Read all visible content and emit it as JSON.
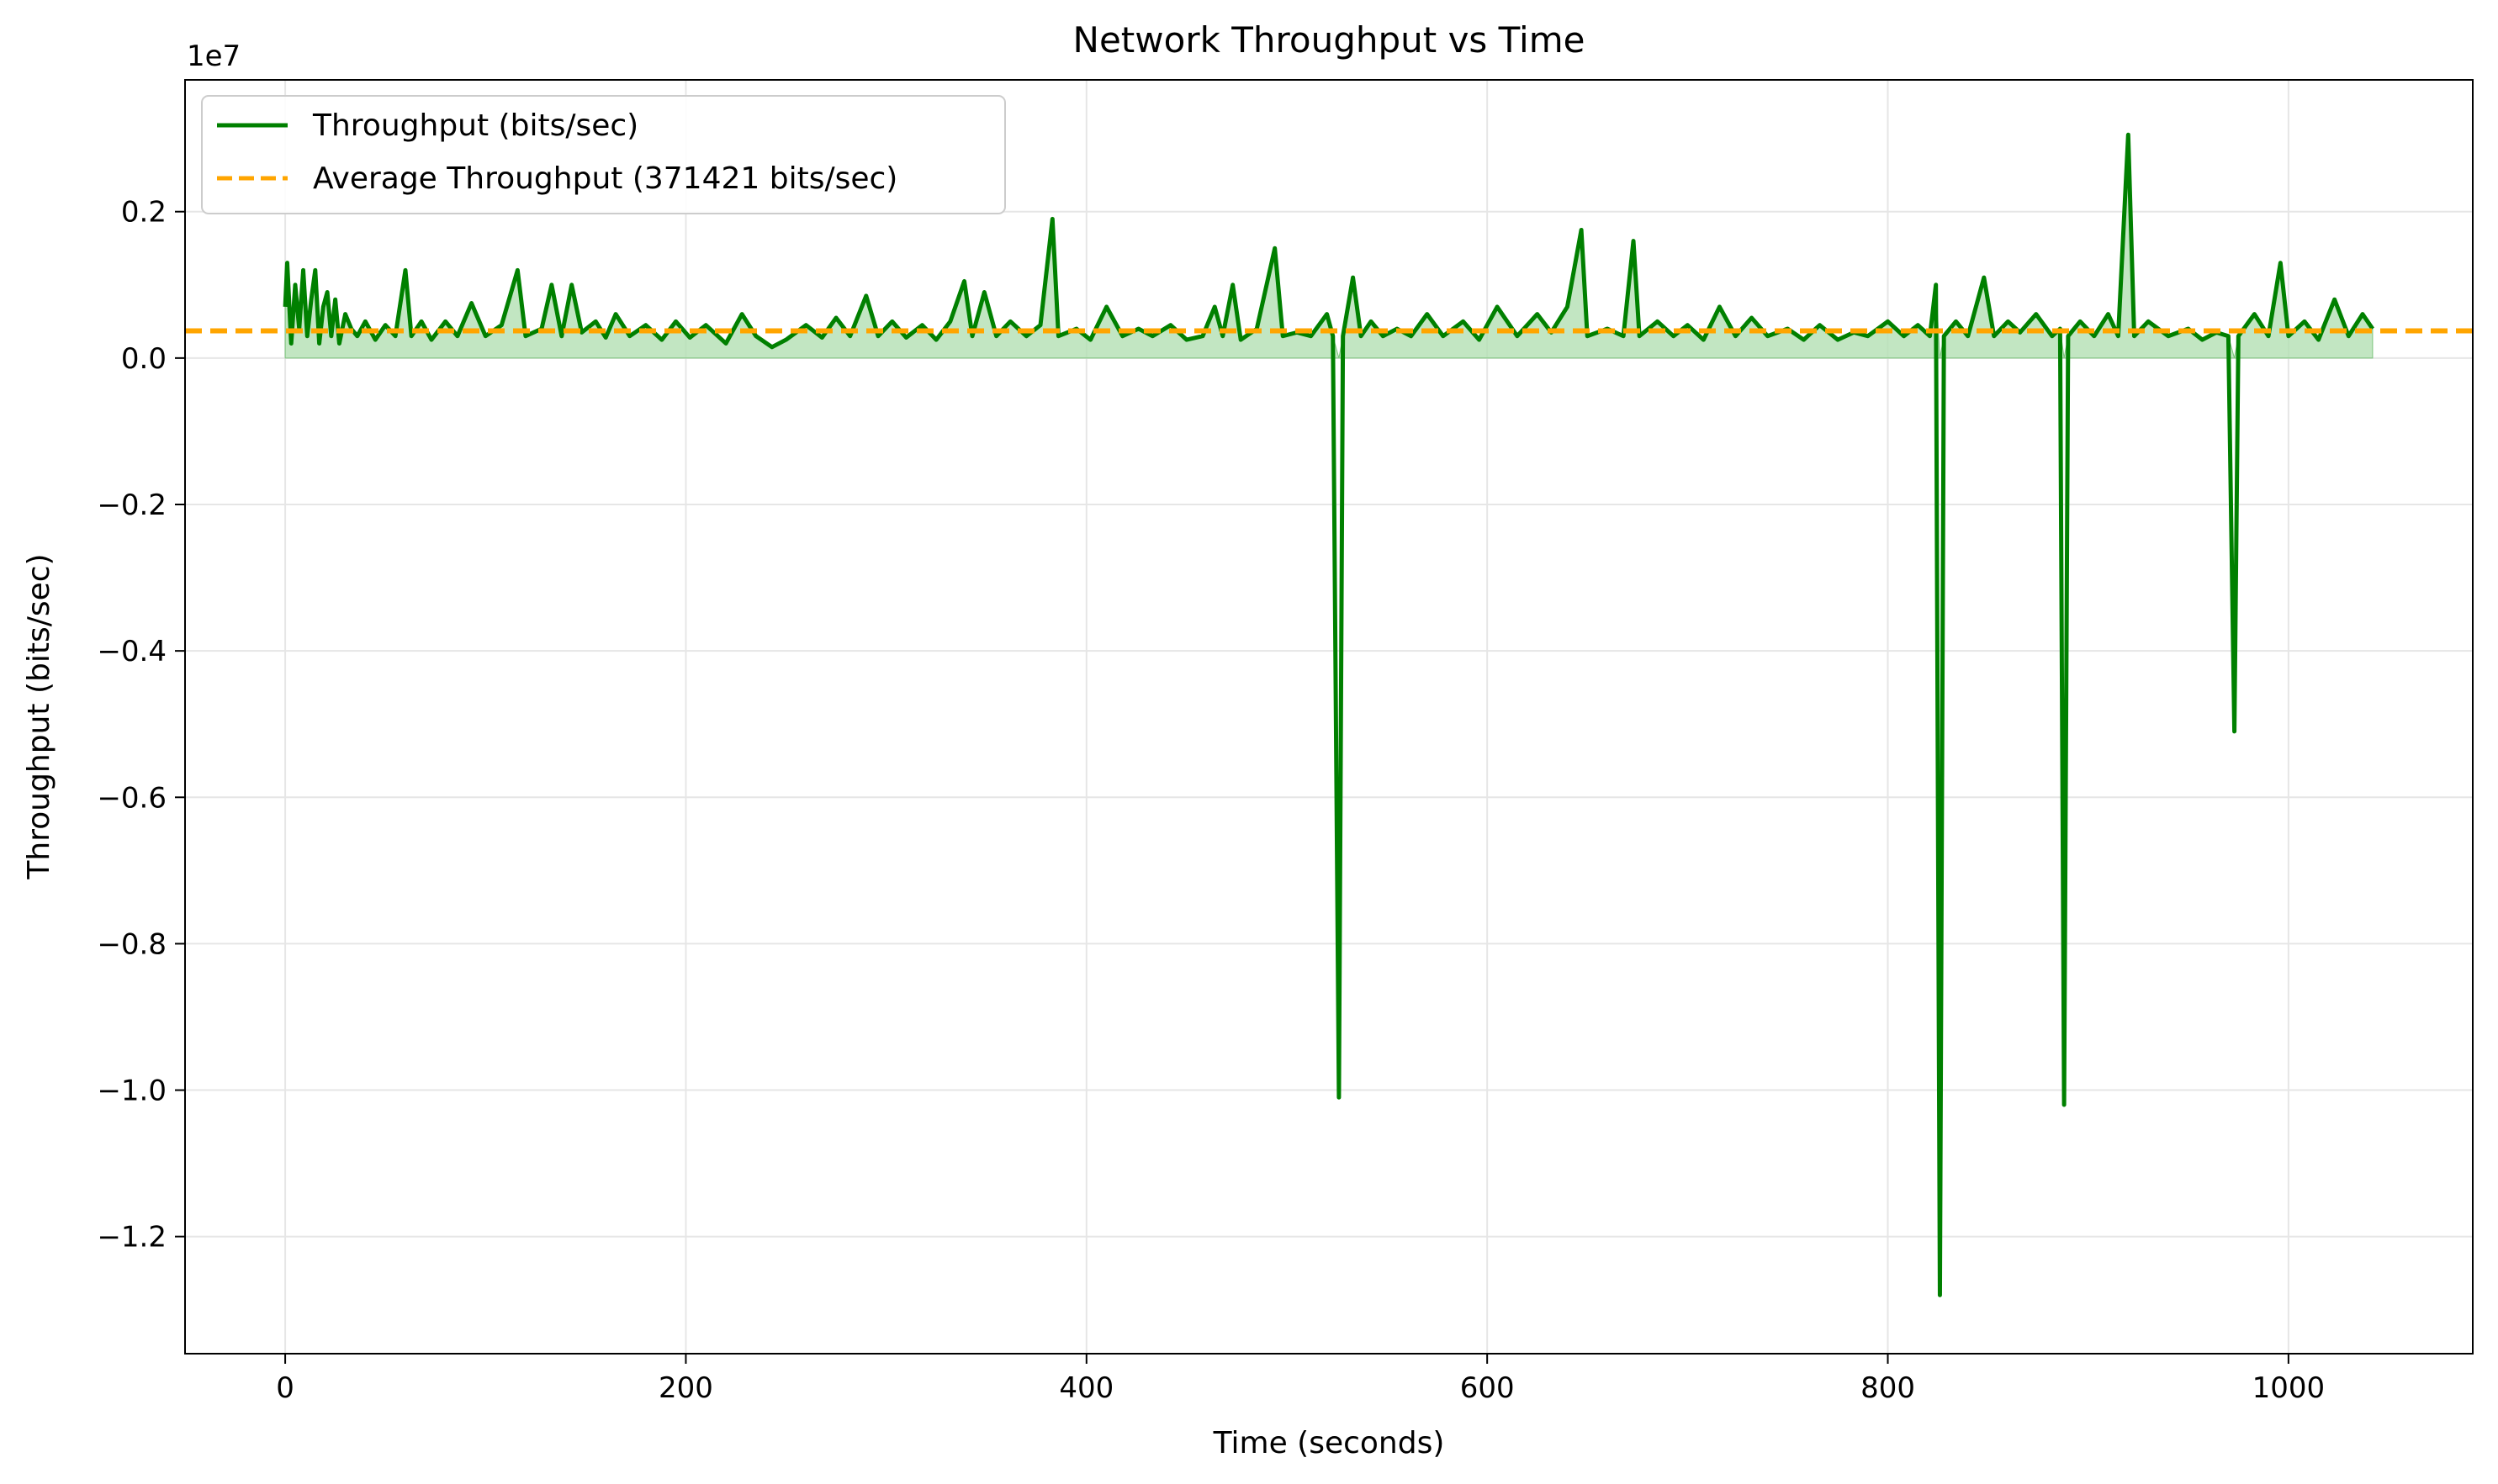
{
  "chart_data": {
    "type": "line",
    "title": "Network Throughput vs Time",
    "xlabel": "Time (seconds)",
    "ylabel": "Throughput (bits/sec)",
    "y_offset_text": "1e7",
    "y_scale_factor": 10000000,
    "xlim": [
      -50,
      1092
    ],
    "ylim": [
      -13.6,
      3.8
    ],
    "xticks": [
      0,
      200,
      400,
      600,
      800,
      1000
    ],
    "xtick_labels": [
      "0",
      "200",
      "400",
      "600",
      "800",
      "1000"
    ],
    "yticks": [
      -1.2,
      -1.0,
      -0.8,
      -0.6,
      -0.4,
      -0.2,
      0.0,
      0.2
    ],
    "ytick_labels": [
      "−1.2",
      "−1.0",
      "−0.8",
      "−0.6",
      "−0.4",
      "−0.2",
      "0.0",
      "0.2"
    ],
    "grid": true,
    "legend_position": "top-left",
    "series": [
      {
        "name": "Throughput (bits/sec)",
        "color": "#008000",
        "style": "solid",
        "fill_to_zero": true,
        "fill_color": "#b3e0b3",
        "points": [
          [
            0,
            700000
          ],
          [
            1,
            1300000
          ],
          [
            3,
            200000
          ],
          [
            5,
            1000000
          ],
          [
            7,
            400000
          ],
          [
            9,
            1200000
          ],
          [
            11,
            300000
          ],
          [
            13,
            800000
          ],
          [
            15,
            1200000
          ],
          [
            17,
            200000
          ],
          [
            19,
            700000
          ],
          [
            21,
            900000
          ],
          [
            23,
            300000
          ],
          [
            25,
            800000
          ],
          [
            27,
            200000
          ],
          [
            30,
            600000
          ],
          [
            33,
            400000
          ],
          [
            36,
            300000
          ],
          [
            40,
            500000
          ],
          [
            45,
            250000
          ],
          [
            50,
            450000
          ],
          [
            55,
            300000
          ],
          [
            60,
            1200000
          ],
          [
            63,
            300000
          ],
          [
            68,
            500000
          ],
          [
            73,
            250000
          ],
          [
            80,
            500000
          ],
          [
            86,
            300000
          ],
          [
            93,
            750000
          ],
          [
            100,
            300000
          ],
          [
            108,
            450000
          ],
          [
            116,
            1200000
          ],
          [
            120,
            300000
          ],
          [
            128,
            400000
          ],
          [
            133,
            1000000
          ],
          [
            138,
            300000
          ],
          [
            143,
            1000000
          ],
          [
            148,
            350000
          ],
          [
            155,
            500000
          ],
          [
            160,
            280000
          ],
          [
            165,
            600000
          ],
          [
            172,
            300000
          ],
          [
            180,
            450000
          ],
          [
            188,
            250000
          ],
          [
            195,
            500000
          ],
          [
            202,
            280000
          ],
          [
            210,
            450000
          ],
          [
            220,
            200000
          ],
          [
            228,
            600000
          ],
          [
            235,
            300000
          ],
          [
            243,
            150000
          ],
          [
            250,
            250000
          ],
          [
            260,
            450000
          ],
          [
            268,
            280000
          ],
          [
            275,
            550000
          ],
          [
            282,
            300000
          ],
          [
            290,
            850000
          ],
          [
            296,
            300000
          ],
          [
            303,
            500000
          ],
          [
            310,
            280000
          ],
          [
            318,
            450000
          ],
          [
            325,
            250000
          ],
          [
            332,
            500000
          ],
          [
            339,
            1050000
          ],
          [
            343,
            300000
          ],
          [
            349,
            900000
          ],
          [
            355,
            300000
          ],
          [
            362,
            500000
          ],
          [
            370,
            300000
          ],
          [
            377,
            450000
          ],
          [
            383,
            1900000
          ],
          [
            386,
            300000
          ],
          [
            395,
            400000
          ],
          [
            402,
            250000
          ],
          [
            410,
            700000
          ],
          [
            418,
            300000
          ],
          [
            426,
            400000
          ],
          [
            433,
            300000
          ],
          [
            442,
            450000
          ],
          [
            450,
            250000
          ],
          [
            458,
            300000
          ],
          [
            464,
            700000
          ],
          [
            468,
            300000
          ],
          [
            473,
            1000000
          ],
          [
            477,
            250000
          ],
          [
            485,
            400000
          ],
          [
            494,
            1500000
          ],
          [
            498,
            300000
          ],
          [
            505,
            350000
          ],
          [
            512,
            300000
          ],
          [
            520,
            600000
          ],
          [
            523,
            300000
          ],
          [
            526,
            -10100000
          ],
          [
            528,
            300000
          ],
          [
            533,
            1100000
          ],
          [
            537,
            300000
          ],
          [
            542,
            500000
          ],
          [
            548,
            300000
          ],
          [
            555,
            400000
          ],
          [
            562,
            300000
          ],
          [
            570,
            600000
          ],
          [
            578,
            300000
          ],
          [
            588,
            500000
          ],
          [
            596,
            250000
          ],
          [
            605,
            700000
          ],
          [
            615,
            300000
          ],
          [
            625,
            600000
          ],
          [
            632,
            350000
          ],
          [
            640,
            700000
          ],
          [
            647,
            1750000
          ],
          [
            650,
            300000
          ],
          [
            660,
            400000
          ],
          [
            668,
            300000
          ],
          [
            673,
            1600000
          ],
          [
            676,
            300000
          ],
          [
            685,
            500000
          ],
          [
            693,
            300000
          ],
          [
            700,
            450000
          ],
          [
            708,
            250000
          ],
          [
            716,
            700000
          ],
          [
            724,
            300000
          ],
          [
            732,
            550000
          ],
          [
            740,
            300000
          ],
          [
            750,
            400000
          ],
          [
            758,
            250000
          ],
          [
            766,
            450000
          ],
          [
            775,
            250000
          ],
          [
            783,
            350000
          ],
          [
            790,
            300000
          ],
          [
            800,
            500000
          ],
          [
            808,
            300000
          ],
          [
            815,
            450000
          ],
          [
            821,
            300000
          ],
          [
            824,
            1000000
          ],
          [
            826,
            -12800000
          ],
          [
            828,
            300000
          ],
          [
            834,
            500000
          ],
          [
            840,
            300000
          ],
          [
            848,
            1100000
          ],
          [
            853,
            300000
          ],
          [
            860,
            500000
          ],
          [
            866,
            350000
          ],
          [
            874,
            600000
          ],
          [
            882,
            300000
          ],
          [
            886,
            400000
          ],
          [
            888,
            -10200000
          ],
          [
            890,
            300000
          ],
          [
            896,
            500000
          ],
          [
            903,
            300000
          ],
          [
            910,
            600000
          ],
          [
            915,
            300000
          ],
          [
            920,
            3050000
          ],
          [
            923,
            300000
          ],
          [
            930,
            500000
          ],
          [
            940,
            300000
          ],
          [
            950,
            400000
          ],
          [
            957,
            250000
          ],
          [
            964,
            350000
          ],
          [
            970,
            300000
          ],
          [
            973,
            -5100000
          ],
          [
            975,
            300000
          ],
          [
            983,
            600000
          ],
          [
            990,
            300000
          ],
          [
            996,
            1300000
          ],
          [
            1000,
            300000
          ],
          [
            1008,
            500000
          ],
          [
            1015,
            250000
          ],
          [
            1023,
            800000
          ],
          [
            1030,
            300000
          ],
          [
            1037,
            600000
          ],
          [
            1042,
            400000
          ]
        ]
      },
      {
        "name": "Average Throughput (371421 bits/sec)",
        "color": "#FFA500",
        "style": "dashed",
        "value": 371421
      }
    ]
  }
}
